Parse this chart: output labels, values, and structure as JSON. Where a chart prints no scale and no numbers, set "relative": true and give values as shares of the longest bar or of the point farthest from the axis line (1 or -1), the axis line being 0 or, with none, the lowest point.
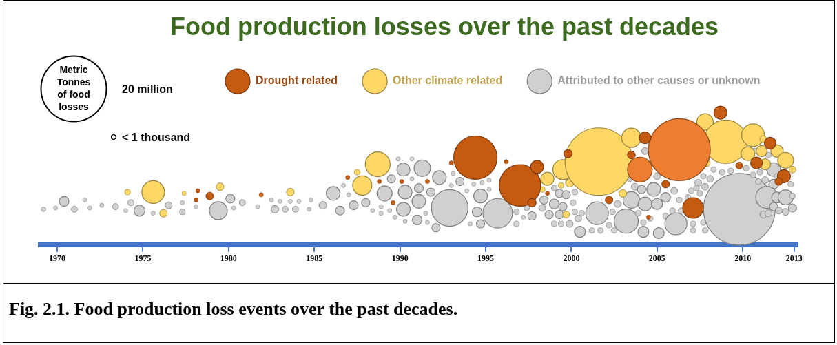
{
  "chart_data": {
    "type": "bubble",
    "title": "Food production losses over the past decades",
    "legend_title": "Metric Tonnes of food losses",
    "size_legend": [
      {
        "value": 20,
        "label": "20 million"
      },
      {
        "value": 0.14,
        "label": "< 1 thousand"
      }
    ],
    "relative": true,
    "legend": "top",
    "grid": false,
    "xlim": [
      1969,
      2013.2
    ],
    "xticks": [
      1970,
      1975,
      1980,
      1985,
      1990,
      1995,
      2000,
      2005,
      2010,
      2013
    ],
    "annotations": [
      "Fig. 2.1. Food production loss events over the past decades."
    ],
    "series": [
      {
        "name": "Drought related",
        "color": "#c55a11",
        "colors": [
          "#c55a11",
          "#c55a11",
          "#c55a11",
          "#c55a11",
          "#c55a11",
          "#c55a11",
          "#c55a11",
          "#c55a11",
          "#c55a11",
          "#c55a11",
          "#c55a11",
          "#c55a11",
          "#c55a11",
          "#c55a11",
          "#c55a11",
          "#c55a11",
          "#c55a11",
          "#c55a11",
          "#ed7d31",
          "#ed7d31",
          "#c55a11",
          "#c55a11",
          "#c55a11",
          "#c55a11",
          "#c55a11",
          "#c55a11",
          "#c55a11",
          "#c55a11",
          "#c55a11",
          "#c55a11",
          "#c55a11",
          "#c55a11"
        ],
        "x": [
          1978.2,
          1978.1,
          1978.9,
          1981.9,
          1986.95,
          1988.8,
          1990.1,
          1991.6,
          1989.6,
          1993.0,
          1994.4,
          1996.2,
          1997.0,
          1998.0,
          1997.7,
          1998.6,
          1999.8,
          2003.5,
          2004.0,
          2006.3,
          2008.7,
          2004.3,
          2011.6,
          2010.8,
          2009.8,
          2012.4,
          2012.1,
          2005.5,
          2007.1,
          2002.2,
          2004.5,
          2003.5
        ],
        "values": [
          0.41,
          0.34,
          0.37,
          0.38,
          0.51,
          0.48,
          0.48,
          0.48,
          0.32,
          0.62,
          0.66,
          0.63,
          0.45,
          0.59,
          0.32,
          0.39,
          0.69,
          0.68,
          0.57,
          0.72,
          1.0,
          0.81,
          0.77,
          0.62,
          0.6,
          0.52,
          0.48,
          0.46,
          0.28,
          0.34,
          0.21,
          0.68
        ],
        "sizes": [
          0.08,
          0.08,
          0.26,
          0.08,
          0.08,
          0.08,
          0.08,
          0.08,
          0.08,
          0.08,
          8.4,
          0.08,
          7.7,
          0.77,
          0.31,
          0.08,
          0.31,
          0.26,
          2.75,
          17.2,
          0.77,
          0.61,
          0.61,
          0.61,
          0.21,
          0.77,
          0.26,
          0.26,
          1.91,
          0.26,
          0.08,
          0.26
        ]
      },
      {
        "name": "Other climate related",
        "color": "#fdd866",
        "x": [
          1974.1,
          1975.6,
          1976.2,
          1977.4,
          1979.5,
          1983.6,
          1988.7,
          1987.8,
          1987.5,
          1998.6,
          1999.5,
          1999.4,
          1999.9,
          1998.3,
          1998.1,
          1999.7,
          2001.6,
          2003.5,
          2007.8,
          2009.0,
          2010.6,
          2011.2,
          2010.3,
          2011.1,
          2011.3,
          2012.0,
          2012.5,
          2012.9,
          2007.9,
          2003.0
        ],
        "values": [
          0.4,
          0.4,
          0.24,
          0.39,
          0.44,
          0.4,
          0.61,
          0.45,
          0.55,
          0.5,
          0.57,
          0.45,
          0.47,
          0.42,
          0.48,
          0.23,
          0.63,
          0.81,
          0.93,
          0.78,
          0.83,
          0.8,
          0.69,
          0.71,
          0.61,
          0.71,
          0.64,
          0.57,
          0.62,
          0.39
        ],
        "sizes": [
          0.14,
          2.31,
          0.26,
          0.08,
          0.26,
          0.26,
          2.75,
          1.67,
          0.14,
          0.77,
          1.79,
          0.14,
          0.31,
          0.14,
          0.08,
          0.21,
          20.4,
          1.67,
          1.22,
          8.4,
          2.31,
          0.21,
          0.85,
          0.54,
          0.54,
          0.69,
          1.12,
          0.21,
          0.21,
          0.26
        ]
      },
      {
        "name": "Attributed to other causes or unknown",
        "color": "#d0d0d0",
        "x": [
          1969.2,
          1969.9,
          1970.4,
          1971.0,
          1971.6,
          1971.9,
          1972.6,
          1973.4,
          1974.0,
          1974.3,
          1974.8,
          1975.6,
          1976.5,
          1977.3,
          1977.3,
          1978.1,
          1979.4,
          1980.1,
          1980.3,
          1980.8,
          1981.7,
          1982.5,
          1983.0,
          1983.6,
          1984.1,
          1984.8,
          1982.7,
          1983.3,
          1983.9,
          1984.7,
          1985.5,
          1986.1,
          1986.5,
          1986.7,
          1987.0,
          1987.3,
          1988.0,
          1988.4,
          1988.9,
          1988.9,
          1989.1,
          1989.5,
          1989.4,
          1989.9,
          1990.2,
          1990.3,
          1990.2,
          1989.7,
          1990.3,
          1990.7,
          1991.3,
          1991.1,
          1991.1,
          1991.5,
          1991.0,
          1991.6,
          1990.7,
          1991.8,
          1992.3,
          1992.1,
          1992.9,
          1993.1,
          1993.0,
          1993.5,
          1993.9,
          1994.3,
          1994.8,
          1995.2,
          1995.2,
          1994.7,
          1994.5,
          1994.1,
          1994.7,
          1995.7,
          1996.8,
          1996.8,
          1997.2,
          1997.4,
          1997.7,
          1998.3,
          1998.4,
          1999.0,
          1999.3,
          1999.0,
          1999.5,
          1999.7,
          2000.1,
          2000.2,
          1998.7,
          1999.3,
          1999.0,
          1999.4,
          1999.9,
          2000.2,
          2000.4,
          2000.6,
          2000.5,
          2001.2,
          2001.5,
          2001.7,
          2002.2,
          2002.5,
          2002.4,
          2002.7,
          2003.2,
          2003.5,
          2003.7,
          2003.4,
          2004.1,
          2004.3,
          2004.3,
          2003.9,
          2004.2,
          2004.2,
          2004.6,
          2004.8,
          2005.0,
          2005.0,
          2005.1,
          2005.5,
          2005.5,
          2006.0,
          2005.9,
          2006.3,
          2006.4,
          2006.1,
          2006.8,
          2007.0,
          2007.4,
          2007.3,
          2007.8,
          2007.7,
          2008.1,
          2007.5,
          2008.3,
          2008.8,
          2009.3,
          2007.1,
          2007.1,
          2007.7,
          2007.8,
          2009.8,
          2010.2,
          2010.7,
          2010.6,
          2010.9,
          2011.0,
          2011.3,
          2011.5,
          2011.8,
          2011.8,
          2011.4,
          2012.0,
          2012.0,
          2012.5,
          2012.8,
          2012.9,
          2011.2,
          2011.5,
          2011.8,
          2012.1,
          2012.5,
          2012.9
        ],
        "values": [
          0.27,
          0.28,
          0.33,
          0.27,
          0.34,
          0.28,
          0.3,
          0.29,
          0.26,
          0.32,
          0.26,
          0.24,
          0.3,
          0.32,
          0.25,
          0.29,
          0.26,
          0.35,
          0.28,
          0.32,
          0.29,
          0.34,
          0.33,
          0.33,
          0.33,
          0.34,
          0.27,
          0.27,
          0.27,
          0.27,
          0.3,
          0.39,
          0.26,
          0.45,
          0.38,
          0.3,
          0.32,
          0.26,
          0.29,
          0.24,
          0.39,
          0.5,
          0.26,
          0.65,
          0.57,
          0.4,
          0.27,
          0.21,
          0.18,
          0.65,
          0.58,
          0.43,
          0.33,
          0.24,
          0.19,
          0.17,
          0.5,
          0.4,
          0.51,
          0.13,
          0.28,
          0.54,
          0.45,
          0.48,
          0.41,
          0.46,
          0.47,
          0.49,
          0.42,
          0.37,
          0.25,
          0.16,
          0.16,
          0.24,
          0.25,
          0.16,
          0.21,
          0.28,
          0.22,
          0.28,
          0.34,
          0.43,
          0.39,
          0.31,
          0.29,
          0.38,
          0.32,
          0.4,
          0.23,
          0.23,
          0.16,
          0.16,
          0.16,
          0.25,
          0.2,
          0.24,
          0.1,
          0.11,
          0.24,
          0.11,
          0.15,
          0.11,
          0.25,
          0.31,
          0.18,
          0.34,
          0.44,
          0.5,
          0.42,
          0.71,
          0.31,
          0.24,
          0.17,
          0.1,
          0.2,
          0.42,
          0.52,
          0.31,
          0.09,
          0.36,
          0.22,
          0.41,
          0.26,
          0.34,
          0.26,
          0.16,
          0.36,
          0.41,
          0.47,
          0.43,
          0.44,
          0.52,
          0.5,
          0.39,
          0.57,
          0.55,
          0.56,
          0.16,
          0.11,
          0.17,
          0.11,
          0.27,
          0.58,
          0.71,
          0.53,
          0.48,
          0.55,
          0.49,
          0.68,
          0.57,
          0.46,
          0.36,
          0.52,
          0.36,
          0.36,
          0.46,
          0.37,
          0.23,
          0.24,
          0.29,
          0.26,
          0.25,
          0.28
        ],
        "sizes": [
          0.1,
          0.08,
          0.42,
          0.17,
          0.08,
          0.08,
          0.08,
          0.17,
          0.08,
          0.17,
          0.54,
          0.08,
          0.21,
          0.08,
          0.14,
          0.08,
          1.44,
          0.36,
          0.08,
          0.17,
          0.08,
          0.08,
          0.08,
          0.08,
          0.08,
          0.08,
          0.26,
          0.17,
          0.17,
          0.08,
          0.26,
          0.85,
          0.36,
          0.08,
          0.08,
          0.36,
          0.31,
          0.08,
          0.08,
          0.08,
          1.03,
          0.31,
          0.08,
          0.08,
          0.77,
          0.85,
          0.85,
          0.08,
          0.08,
          0.08,
          1.22,
          0.36,
          0.85,
          0.08,
          0.42,
          0.08,
          0.08,
          0.31,
          0.85,
          0.31,
          6.0,
          0.08,
          0.08,
          0.31,
          0.08,
          0.08,
          0.08,
          0.08,
          0.08,
          0.85,
          0.42,
          0.08,
          0.31,
          3.9,
          0.14,
          0.14,
          0.08,
          0.14,
          0.31,
          0.21,
          0.31,
          0.14,
          0.31,
          0.42,
          0.31,
          0.31,
          0.14,
          0.14,
          0.31,
          0.31,
          0.14,
          0.14,
          0.21,
          0.14,
          0.21,
          0.14,
          0.54,
          0.14,
          2.31,
          0.14,
          0.14,
          0.14,
          0.14,
          0.21,
          2.6,
          1.22,
          0.21,
          0.14,
          0.31,
          0.21,
          0.85,
          0.14,
          0.14,
          0.54,
          0.14,
          0.85,
          0.21,
          0.54,
          0.54,
          0.42,
          0.14,
          0.21,
          0.14,
          0.14,
          0.14,
          2.18,
          0.14,
          0.14,
          0.21,
          0.14,
          0.21,
          0.14,
          0.21,
          0.14,
          0.14,
          0.14,
          0.14,
          0.14,
          0.14,
          0.14,
          0.14,
          23.0,
          0.14,
          0.14,
          0.14,
          0.14,
          0.14,
          0.21,
          0.14,
          0.85,
          0.42,
          2.18,
          0.14,
          0.54,
          1.03,
          0.14,
          0.14,
          0.21,
          0.21,
          0.31,
          0.21,
          0.21,
          0.31
        ]
      }
    ]
  }
}
